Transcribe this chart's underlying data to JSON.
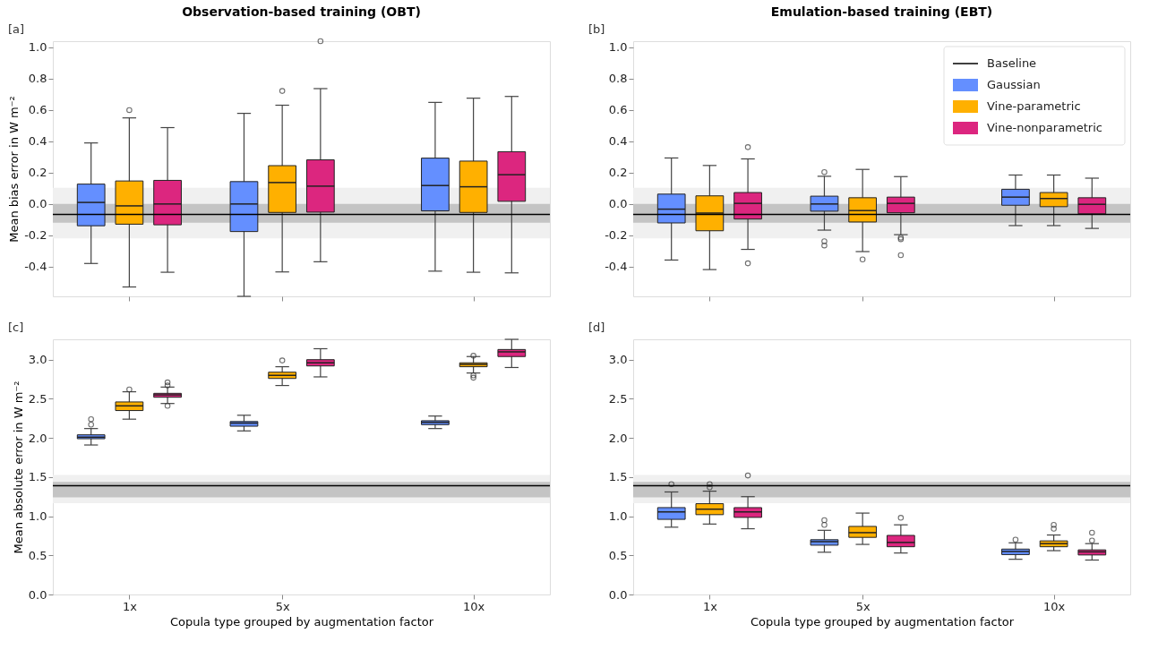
{
  "chart_data": [
    {
      "type": "box",
      "title": "Observation-based training (OBT)",
      "annotations": [
        "[a]"
      ],
      "ylabel": "Mean bias error in W m⁻²",
      "x": [
        1,
        5,
        10
      ],
      "xlim": [
        -1,
        12
      ],
      "xticks": [
        {
          "value": 1,
          "label": null
        },
        {
          "value": 5,
          "label": null
        },
        {
          "value": 10,
          "label": null
        }
      ],
      "ylim": [
        -0.59,
        1.04
      ],
      "yticks": [
        -0.4,
        -0.2,
        {
          "value": 0,
          "label": "0.0"
        },
        0.2,
        0.4,
        0.6,
        0.8,
        {
          "value": 1,
          "label": "1.0"
        }
      ],
      "tick_labels": "y",
      "legend": false,
      "bands": [
        {
          "axis": "y",
          "from": -0.22,
          "to": 0.104,
          "color": "#f0f0f0"
        },
        {
          "axis": "y",
          "from": -0.12,
          "to": 0.0,
          "color": "#c4c4c4"
        }
      ],
      "ref_lines": [
        {
          "axis": "y",
          "value": -0.066,
          "color": "#000000",
          "line_style": "solid"
        }
      ],
      "series": [
        {
          "color": "#648fff",
          "boxes": [
            {
              "low": -0.38,
              "q1": -0.139,
              "median": 0.01,
              "q3": 0.127,
              "high": 0.39
            },
            {
              "low": -0.59,
              "q1": -0.176,
              "median": 0.0,
              "q3": 0.143,
              "high": 0.579
            },
            {
              "low": -0.429,
              "q1": -0.044,
              "median": 0.118,
              "q3": 0.293,
              "high": 0.649
            }
          ]
        },
        {
          "color": "#ffb000",
          "boxes": [
            {
              "low": -0.53,
              "q1": -0.129,
              "median": -0.012,
              "q3": 0.147,
              "high": 0.55,
              "outliers": [
                0.6
              ]
            },
            {
              "low": -0.434,
              "q1": -0.054,
              "median": 0.137,
              "q3": 0.245,
              "high": 0.631,
              "outliers": [
                0.722
              ]
            },
            {
              "low": -0.436,
              "q1": -0.054,
              "median": 0.11,
              "q3": 0.274,
              "high": 0.676
            }
          ]
        },
        {
          "color": "#dc267f",
          "boxes": [
            {
              "low": -0.436,
              "q1": -0.133,
              "median": 0.0,
              "q3": 0.151,
              "high": 0.488
            },
            {
              "low": -0.369,
              "q1": -0.052,
              "median": 0.114,
              "q3": 0.282,
              "high": 0.737,
              "outliers": [
                1.04
              ]
            },
            {
              "low": -0.44,
              "q1": 0.017,
              "median": 0.187,
              "q3": 0.334,
              "high": 0.687
            }
          ]
        }
      ]
    },
    {
      "type": "box",
      "title": "Emulation-based training (EBT)",
      "annotations": [
        "[b]"
      ],
      "x": [
        1,
        5,
        10
      ],
      "xlim": [
        -1,
        12
      ],
      "xticks": [
        {
          "value": 1,
          "label": null
        },
        {
          "value": 5,
          "label": null
        },
        {
          "value": 10,
          "label": null
        }
      ],
      "ylim": [
        -0.59,
        1.04
      ],
      "yticks": [
        -0.4,
        -0.2,
        {
          "value": 0,
          "label": "0.0"
        },
        0.2,
        0.4,
        0.6,
        0.8,
        {
          "value": 1,
          "label": "1.0"
        }
      ],
      "tick_labels": "y",
      "legend": "top right",
      "bands": [
        {
          "axis": "y",
          "from": -0.22,
          "to": 0.104,
          "color": "#f0f0f0"
        },
        {
          "axis": "y",
          "from": -0.12,
          "to": 0.0,
          "color": "#c4c4c4"
        }
      ],
      "ref_lines": [
        {
          "axis": "y",
          "value": -0.066,
          "label": "Baseline",
          "color": "#000000",
          "line_style": "solid"
        }
      ],
      "series": [
        {
          "name": "Gaussian",
          "color": "#648fff",
          "boxes": [
            {
              "low": -0.358,
              "q1": -0.121,
              "median": -0.033,
              "q3": 0.063,
              "high": 0.294
            },
            {
              "low": -0.167,
              "q1": -0.046,
              "median": 0.0,
              "q3": 0.05,
              "high": 0.177,
              "outliers": [
                0.204,
                -0.238,
                -0.265
              ]
            },
            {
              "low": -0.138,
              "q1": -0.008,
              "median": 0.044,
              "q3": 0.094,
              "high": 0.185
            }
          ]
        },
        {
          "name": "Vine-parametric",
          "color": "#ffb000",
          "boxes": [
            {
              "low": -0.419,
              "q1": -0.171,
              "median": -0.058,
              "q3": 0.052,
              "high": 0.246
            },
            {
              "low": -0.304,
              "q1": -0.115,
              "median": -0.042,
              "q3": 0.04,
              "high": 0.221,
              "outliers": [
                -0.354
              ]
            },
            {
              "low": -0.138,
              "q1": -0.017,
              "median": 0.035,
              "q3": 0.073,
              "high": 0.185
            }
          ]
        },
        {
          "name": "Vine-nonparametric",
          "color": "#dc267f",
          "boxes": [
            {
              "low": -0.29,
              "q1": -0.096,
              "median": 0.004,
              "q3": 0.073,
              "high": 0.288,
              "outliers": [
                0.363,
                -0.379
              ]
            },
            {
              "low": -0.196,
              "q1": -0.056,
              "median": 0.004,
              "q3": 0.044,
              "high": 0.175,
              "outliers": [
                -0.215,
                -0.225,
                -0.327
              ]
            },
            {
              "low": -0.156,
              "q1": -0.063,
              "median": -0.002,
              "q3": 0.04,
              "high": 0.165
            }
          ]
        }
      ]
    },
    {
      "type": "box",
      "annotations": [
        "[c]"
      ],
      "xlabel": "Copula type grouped by augmentation factor",
      "ylabel": "Mean absolute error in W m⁻²",
      "x": [
        1,
        5,
        10
      ],
      "xlim": [
        -1,
        12
      ],
      "xticks": [
        {
          "value": 1,
          "label": "1x"
        },
        {
          "value": 5,
          "label": "5x"
        },
        {
          "value": 10,
          "label": "10x"
        }
      ],
      "ylim": [
        0,
        3.26
      ],
      "yticks": [
        {
          "value": 0,
          "label": "0.0"
        },
        0.5,
        {
          "value": 1,
          "label": "1.0"
        },
        1.5,
        {
          "value": 2,
          "label": "2.0"
        },
        2.5,
        {
          "value": 3,
          "label": "3.0"
        }
      ],
      "legend": false,
      "bands": [
        {
          "axis": "y",
          "from": 1.167,
          "to": 1.526,
          "color": "#f0f0f0"
        },
        {
          "axis": "y",
          "from": 1.24,
          "to": 1.437,
          "color": "#c4c4c4"
        }
      ],
      "ref_lines": [
        {
          "axis": "y",
          "value": 1.39,
          "color": "#000000",
          "line_style": "solid"
        }
      ],
      "series": [
        {
          "color": "#648fff",
          "boxes": [
            {
              "low": 1.91,
              "q1": 1.99,
              "median": 2.01,
              "q3": 2.04,
              "high": 2.12,
              "outliers": [
                2.24,
                2.17
              ]
            },
            {
              "low": 2.09,
              "q1": 2.15,
              "median": 2.19,
              "q3": 2.21,
              "high": 2.29
            },
            {
              "low": 2.12,
              "q1": 2.17,
              "median": 2.2,
              "q3": 2.22,
              "high": 2.28
            }
          ]
        },
        {
          "color": "#ffb000",
          "boxes": [
            {
              "low": 2.24,
              "q1": 2.35,
              "median": 2.41,
              "q3": 2.46,
              "high": 2.59,
              "outliers": [
                2.62
              ]
            },
            {
              "low": 2.67,
              "q1": 2.76,
              "median": 2.8,
              "q3": 2.84,
              "high": 2.91,
              "outliers": [
                2.99
              ]
            },
            {
              "low": 2.83,
              "q1": 2.91,
              "median": 2.94,
              "q3": 2.96,
              "high": 3.04,
              "outliers": [
                3.05,
                2.8,
                2.77
              ]
            }
          ]
        },
        {
          "color": "#dc267f",
          "boxes": [
            {
              "low": 2.44,
              "q1": 2.52,
              "median": 2.55,
              "q3": 2.57,
              "high": 2.65,
              "outliers": [
                2.71,
                2.67,
                2.41
              ]
            },
            {
              "low": 2.78,
              "q1": 2.92,
              "median": 2.96,
              "q3": 3.0,
              "high": 3.14
            },
            {
              "low": 2.9,
              "q1": 3.04,
              "median": 3.1,
              "q3": 3.13,
              "high": 3.26
            }
          ]
        }
      ]
    },
    {
      "type": "box",
      "annotations": [
        "[d]"
      ],
      "xlabel": "Copula type grouped by augmentation factor",
      "x": [
        1,
        5,
        10
      ],
      "xlim": [
        -1,
        12
      ],
      "xticks": [
        {
          "value": 1,
          "label": "1x"
        },
        {
          "value": 5,
          "label": "5x"
        },
        {
          "value": 10,
          "label": "10x"
        }
      ],
      "ylim": [
        0,
        3.26
      ],
      "yticks": [
        {
          "value": 0,
          "label": "0.0"
        },
        0.5,
        {
          "value": 1,
          "label": "1.0"
        },
        1.5,
        {
          "value": 2,
          "label": "2.0"
        },
        2.5,
        {
          "value": 3,
          "label": "3.0"
        }
      ],
      "legend": false,
      "bands": [
        {
          "axis": "y",
          "from": 1.167,
          "to": 1.526,
          "color": "#f0f0f0"
        },
        {
          "axis": "y",
          "from": 1.24,
          "to": 1.437,
          "color": "#c4c4c4"
        }
      ],
      "ref_lines": [
        {
          "axis": "y",
          "value": 1.39,
          "color": "#000000",
          "line_style": "solid"
        }
      ],
      "series": [
        {
          "color": "#648fff",
          "boxes": [
            {
              "low": 0.86,
              "q1": 0.96,
              "median": 1.055,
              "q3": 1.11,
              "high": 1.31,
              "outliers": [
                1.41
              ]
            },
            {
              "low": 0.54,
              "q1": 0.63,
              "median": 0.675,
              "q3": 0.7,
              "high": 0.82,
              "outliers": [
                0.95,
                0.89
              ]
            },
            {
              "low": 0.45,
              "q1": 0.51,
              "median": 0.55,
              "q3": 0.58,
              "high": 0.66,
              "outliers": [
                0.7
              ]
            }
          ]
        },
        {
          "color": "#ffb000",
          "boxes": [
            {
              "low": 0.9,
              "q1": 1.02,
              "median": 1.09,
              "q3": 1.16,
              "high": 1.32,
              "outliers": [
                1.41,
                1.37
              ]
            },
            {
              "low": 0.64,
              "q1": 0.73,
              "median": 0.79,
              "q3": 0.87,
              "high": 1.04
            },
            {
              "low": 0.56,
              "q1": 0.61,
              "median": 0.65,
              "q3": 0.685,
              "high": 0.76,
              "outliers": [
                0.89,
                0.84
              ]
            }
          ]
        },
        {
          "color": "#dc267f",
          "boxes": [
            {
              "low": 0.84,
              "q1": 0.985,
              "median": 1.055,
              "q3": 1.11,
              "high": 1.25,
              "outliers": [
                1.52
              ]
            },
            {
              "low": 0.53,
              "q1": 0.61,
              "median": 0.665,
              "q3": 0.755,
              "high": 0.89,
              "outliers": [
                0.98
              ]
            },
            {
              "low": 0.44,
              "q1": 0.505,
              "median": 0.545,
              "q3": 0.57,
              "high": 0.65,
              "outliers": [
                0.79,
                0.69
              ]
            }
          ]
        }
      ]
    }
  ]
}
